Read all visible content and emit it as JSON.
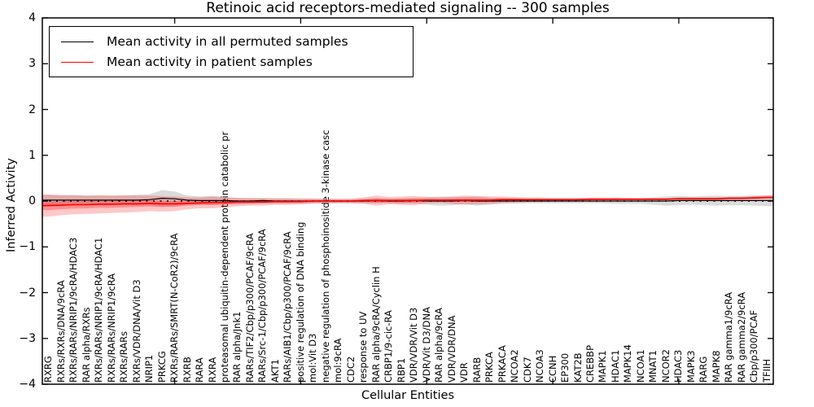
{
  "title": "Retinoic acid receptors-mediated signaling -- 300 samples",
  "axes": {
    "ylabel": "Inferred Activity",
    "xlabel": "Cellular Entities",
    "yticks": [
      4,
      3,
      2,
      1,
      0,
      -1,
      -2,
      -3,
      -4
    ],
    "ylim": [
      -4,
      4
    ]
  },
  "legend": {
    "position": "upper left",
    "items": [
      {
        "label": "Mean activity in all permuted samples",
        "color": "#000000"
      },
      {
        "label": "Mean activity in patient samples",
        "color": "#ff0000"
      }
    ]
  },
  "colors": {
    "patient_line": "#ff0000",
    "permuted_line": "#000000",
    "patient_band": "#ff0000",
    "permuted_band": "#999999",
    "zero_line": "#000000"
  },
  "chart_data": {
    "type": "line",
    "title": "Retinoic acid receptors-mediated signaling -- 300 samples",
    "xlabel": "Cellular Entities",
    "ylabel": "Inferred Activity",
    "ylim": [
      -4,
      4
    ],
    "grid": false,
    "legend_position": "upper left",
    "zero_line": {
      "style": "dotted",
      "color": "#000000",
      "y": 0
    },
    "categories": [
      "RXRG",
      "RXRs/RXRs/DNA/9cRA",
      "RXRs/RARs/NRIP1/9cRA/HDAC3",
      "RAR alpha/RXRs",
      "RXRs/RARs/NRIP1/9cRA/HDAC1",
      "RXRs/RARs/NRIP1/9cRA",
      "RXRs/RARs",
      "RXRs/VDR/DNA/Vit D3",
      "NRIP1",
      "PRKCG",
      "RXRs/RARs/SMRT(N-CoR2)/9cRA",
      "RXRB",
      "RARA",
      "RXRA",
      "proteasomal ubiquitin-dependent protein catabolic pr",
      "RAR alpha/Jnk1",
      "RARs/TIF2/Cbp/p300/PCAF/9cRA",
      "RARs/Src-1/Cbp/p300/PCAF/9cRA",
      "AKT1",
      "RARs/AIB1/Cbp/p300/PCAF/9cRA",
      "positive regulation of DNA binding",
      "mol:Vit D3",
      "negative regulation of phosphoinositide 3-kinase casc",
      "mol:9cRA",
      "CDC2",
      "response to UV",
      "RAR alpha/9cRA/Cyclin H",
      "CRBP1/9-cic-RA",
      "RBP1",
      "VDR/VDR/Vit D3",
      "VDR/Vit D3/DNA",
      "RAR alpha/9cRA",
      "VDR/VDR/DNA",
      "VDR",
      "RARB",
      "PRKCA",
      "PRKACA",
      "NCOA2",
      "CDK7",
      "NCOA3",
      "CCNH",
      "EP300",
      "KAT2B",
      "CREBBP",
      "MAPK1",
      "HDAC1",
      "MAPK14",
      "NCOA1",
      "MNAT1",
      "NCOR2",
      "HDAC3",
      "MAPK3",
      "RARG",
      "MAPK8",
      "RAR gamma1/9cRA",
      "RAR gamma2/9cRA",
      "Cbp/p300/PCAF",
      "TFIIH"
    ],
    "series": [
      {
        "name": "Mean activity in all permuted samples",
        "color": "#000000",
        "values": [
          0.02,
          0.02,
          0.02,
          0.02,
          0.02,
          0.02,
          0.02,
          0.02,
          0.03,
          0.06,
          0.05,
          0.02,
          0.01,
          0.01,
          0.01,
          0,
          0,
          0.01,
          0,
          0,
          0,
          0,
          0,
          0,
          0,
          0,
          0.01,
          0,
          0,
          0.01,
          0,
          0,
          0,
          0.01,
          0,
          0,
          0,
          0,
          0,
          0,
          0,
          0,
          0,
          0,
          0,
          0,
          0,
          0,
          0,
          0,
          0.01,
          0.01,
          0.01,
          0.01,
          0.01,
          0.01,
          0.01,
          0.01
        ]
      },
      {
        "name": "Mean activity in patient samples",
        "color": "#ff0000",
        "values": [
          -0.1,
          -0.09,
          -0.08,
          -0.08,
          -0.07,
          -0.07,
          -0.06,
          -0.06,
          -0.05,
          -0.06,
          -0.06,
          -0.05,
          -0.04,
          -0.03,
          -0.03,
          -0.02,
          -0.02,
          -0.02,
          -0.01,
          -0.01,
          -0.01,
          0,
          0,
          0,
          0,
          0.01,
          0.01,
          0.01,
          0.01,
          0.01,
          0.02,
          0.02,
          0.02,
          0.02,
          0.02,
          0.02,
          0.03,
          0.03,
          0.03,
          0.03,
          0.03,
          0.03,
          0.03,
          0.04,
          0.04,
          0.04,
          0.04,
          0.04,
          0.04,
          0.04,
          0.05,
          0.05,
          0.05,
          0.05,
          0.06,
          0.06,
          0.07,
          0.08
        ]
      }
    ],
    "bands": [
      {
        "name": "patient-std-band",
        "center_series": "Mean activity in patient samples",
        "color": "#ff0000",
        "opacity": 0.22,
        "inner_scale": 0.4,
        "inner_opacity": 0.28,
        "half_widths": [
          0.24,
          0.22,
          0.21,
          0.2,
          0.2,
          0.19,
          0.19,
          0.18,
          0.17,
          0.17,
          0.16,
          0.13,
          0.12,
          0.13,
          0.11,
          0.09,
          0.08,
          0.08,
          0.07,
          0.07,
          0.06,
          0.06,
          0.05,
          0.05,
          0.05,
          0.07,
          0.11,
          0.08,
          0.09,
          0.1,
          0.07,
          0.06,
          0.08,
          0.1,
          0.09,
          0.08,
          0.07,
          0.06,
          0.05,
          0.05,
          0.04,
          0.04,
          0.04,
          0.04,
          0.04,
          0.04,
          0.03,
          0.03,
          0.03,
          0.03,
          0.03,
          0.03,
          0.03,
          0.03,
          0.03,
          0.03,
          0.04,
          0.04
        ]
      },
      {
        "name": "permuted-std-band",
        "center_series": "Mean activity in all permuted samples",
        "color": "#999999",
        "opacity": 0.35,
        "half_widths": [
          0.12,
          0.11,
          0.11,
          0.1,
          0.1,
          0.1,
          0.1,
          0.12,
          0.12,
          0.18,
          0.16,
          0.1,
          0.09,
          0.1,
          0.08,
          0.07,
          0.07,
          0.06,
          0.06,
          0.06,
          0.06,
          0.05,
          0.05,
          0.05,
          0.05,
          0.05,
          0.06,
          0.05,
          0.06,
          0.06,
          0.08,
          0.1,
          0.09,
          0.08,
          0.1,
          0.08,
          0.06,
          0.06,
          0.05,
          0.05,
          0.05,
          0.05,
          0.05,
          0.05,
          0.05,
          0.06,
          0.06,
          0.06,
          0.08,
          0.1,
          0.1,
          0.09,
          0.1,
          0.11,
          0.1,
          0.1,
          0.11,
          0.12
        ]
      }
    ]
  }
}
